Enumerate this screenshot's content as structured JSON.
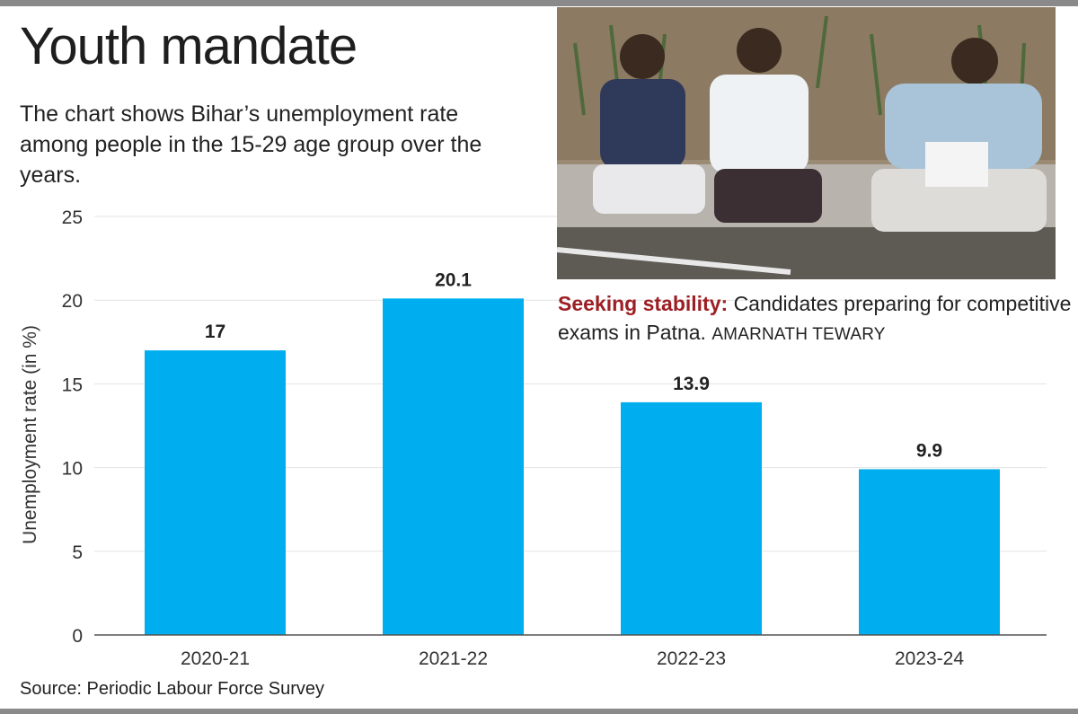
{
  "title": "Youth mandate",
  "subtitle": "The chart shows Bihar’s unemployment rate among people in the 15-29 age group over the years.",
  "photo": {
    "caption_lead": "Seeking stability:",
    "caption_text": "Candidates preparing for competitive exams in Patna.",
    "credit": "AMARNATH TEWARY"
  },
  "source": "Source: Periodic Labour Force Survey",
  "colors": {
    "bar": "#00aeef",
    "caption_lead": "#9c1f24"
  },
  "chart_data": {
    "type": "bar",
    "categories": [
      "2020-21",
      "2021-22",
      "2022-23",
      "2023-24"
    ],
    "values": [
      17,
      20.1,
      13.9,
      9.9
    ],
    "data_labels": [
      "17",
      "20.1",
      "13.9",
      "9.9"
    ],
    "ylabel": "Unemployment rate (in %)",
    "ylim": [
      0,
      25
    ],
    "yticks": [
      0,
      5,
      10,
      15,
      20,
      25
    ],
    "grid": true
  }
}
